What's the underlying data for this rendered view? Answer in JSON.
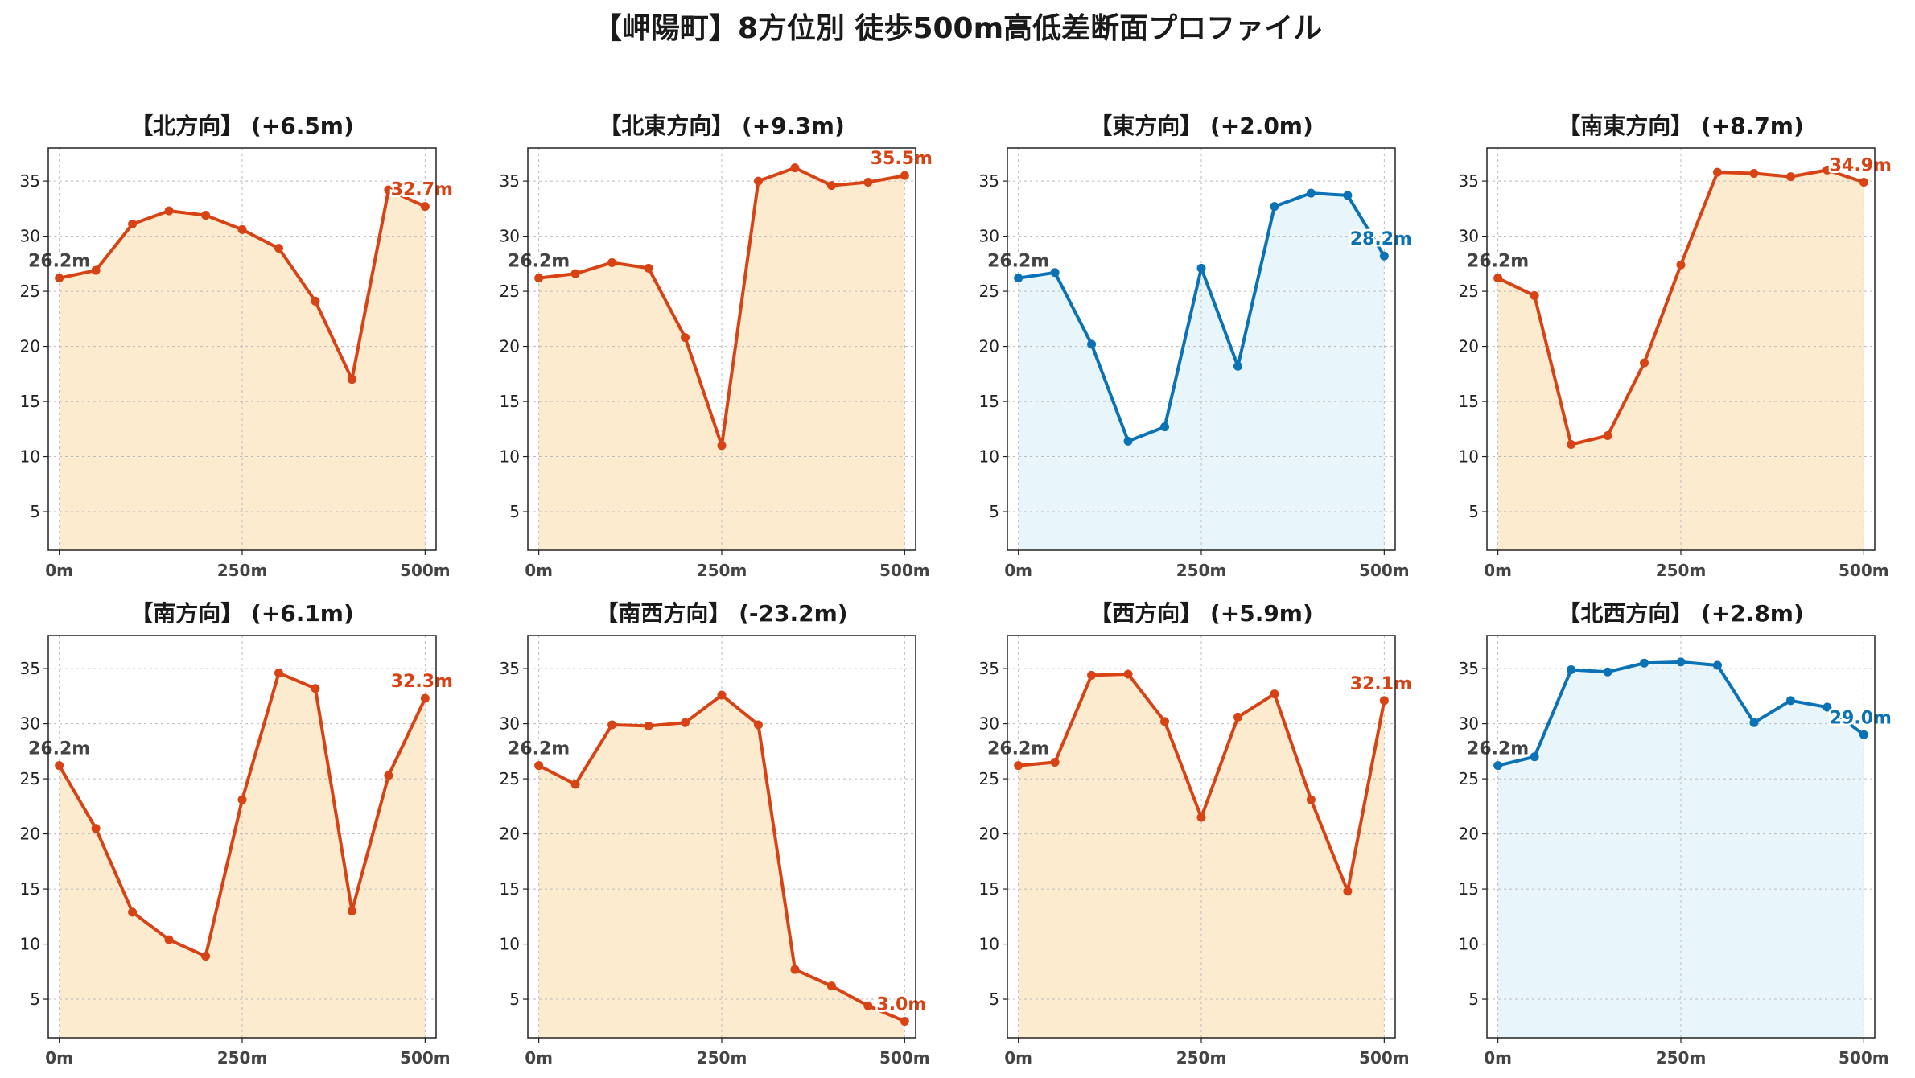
{
  "title": "【岬陽町】8方位別 徒歩500m高低差断面プロファイル",
  "colors": {
    "up_line": "#d84315",
    "up_fill": "#fdebd0",
    "mixed_line": "#0b72b5",
    "mixed_fill": "#e8f5fb",
    "start_label": "#444444",
    "grid": "#bbbbbb"
  },
  "chart_data": [
    {
      "type": "line",
      "title": "【北方向】 (+6.5m)",
      "style": "up",
      "x": [
        0,
        50,
        100,
        150,
        200,
        250,
        300,
        350,
        400,
        450,
        500
      ],
      "y": [
        26.2,
        26.9,
        31.1,
        32.3,
        31.9,
        30.6,
        28.9,
        24.1,
        17.0,
        34.2,
        32.7
      ],
      "start_label": "26.2m",
      "end_label": "32.7m",
      "xticks": [
        "0m",
        "250m",
        "500m"
      ],
      "yticks": [
        5,
        10,
        15,
        20,
        25,
        30,
        35
      ],
      "ylim": [
        1.5,
        38
      ],
      "grid": true
    },
    {
      "type": "line",
      "title": "【北東方向】 (+9.3m)",
      "style": "up",
      "x": [
        0,
        50,
        100,
        150,
        200,
        250,
        300,
        350,
        400,
        450,
        500
      ],
      "y": [
        26.2,
        26.6,
        27.6,
        27.1,
        20.8,
        11.0,
        35.0,
        36.2,
        34.6,
        34.9,
        35.5
      ],
      "start_label": "26.2m",
      "end_label": "35.5m",
      "xticks": [
        "0m",
        "250m",
        "500m"
      ],
      "yticks": [
        5,
        10,
        15,
        20,
        25,
        30,
        35
      ],
      "ylim": [
        1.5,
        38
      ],
      "grid": true
    },
    {
      "type": "line",
      "title": "【東方向】 (+2.0m)",
      "style": "mixed",
      "x": [
        0,
        50,
        100,
        150,
        200,
        250,
        300,
        350,
        400,
        450,
        500
      ],
      "y": [
        26.2,
        26.7,
        20.2,
        11.4,
        12.7,
        27.1,
        18.2,
        32.7,
        33.9,
        33.7,
        28.2
      ],
      "start_label": "26.2m",
      "end_label": "28.2m",
      "xticks": [
        "0m",
        "250m",
        "500m"
      ],
      "yticks": [
        5,
        10,
        15,
        20,
        25,
        30,
        35
      ],
      "ylim": [
        1.5,
        38
      ],
      "grid": true
    },
    {
      "type": "line",
      "title": "【南東方向】 (+8.7m)",
      "style": "up",
      "x": [
        0,
        50,
        100,
        150,
        200,
        250,
        300,
        350,
        400,
        450,
        500
      ],
      "y": [
        26.2,
        24.6,
        11.1,
        11.9,
        18.5,
        27.4,
        35.8,
        35.7,
        35.4,
        36.0,
        34.9
      ],
      "start_label": "26.2m",
      "end_label": "34.9m",
      "xticks": [
        "0m",
        "250m",
        "500m"
      ],
      "yticks": [
        5,
        10,
        15,
        20,
        25,
        30,
        35
      ],
      "ylim": [
        1.5,
        38
      ],
      "grid": true
    },
    {
      "type": "line",
      "title": "【南方向】 (+6.1m)",
      "style": "up",
      "x": [
        0,
        50,
        100,
        150,
        200,
        250,
        300,
        350,
        400,
        450,
        500
      ],
      "y": [
        26.2,
        20.5,
        12.9,
        10.4,
        8.9,
        23.1,
        34.6,
        33.2,
        13.0,
        25.3,
        32.3
      ],
      "start_label": "26.2m",
      "end_label": "32.3m",
      "xticks": [
        "0m",
        "250m",
        "500m"
      ],
      "yticks": [
        5,
        10,
        15,
        20,
        25,
        30,
        35
      ],
      "ylim": [
        1.5,
        38
      ],
      "grid": true
    },
    {
      "type": "line",
      "title": "【南西方向】 (-23.2m)",
      "style": "up",
      "x": [
        0,
        50,
        100,
        150,
        200,
        250,
        300,
        350,
        400,
        450,
        500
      ],
      "y": [
        26.2,
        24.5,
        29.9,
        29.8,
        30.1,
        32.6,
        29.9,
        7.7,
        6.2,
        4.4,
        3.0
      ],
      "start_label": "26.2m",
      "end_label": "3.0m",
      "xticks": [
        "0m",
        "250m",
        "500m"
      ],
      "yticks": [
        5,
        10,
        15,
        20,
        25,
        30,
        35
      ],
      "ylim": [
        1.5,
        38
      ],
      "grid": true
    },
    {
      "type": "line",
      "title": "【西方向】 (+5.9m)",
      "style": "up",
      "x": [
        0,
        50,
        100,
        150,
        200,
        250,
        300,
        350,
        400,
        450,
        500
      ],
      "y": [
        26.2,
        26.5,
        34.4,
        34.5,
        30.2,
        21.5,
        30.6,
        32.7,
        23.1,
        14.8,
        32.1
      ],
      "start_label": "26.2m",
      "end_label": "32.1m",
      "xticks": [
        "0m",
        "250m",
        "500m"
      ],
      "yticks": [
        5,
        10,
        15,
        20,
        25,
        30,
        35
      ],
      "ylim": [
        1.5,
        38
      ],
      "grid": true
    },
    {
      "type": "line",
      "title": "【北西方向】 (+2.8m)",
      "style": "mixed",
      "x": [
        0,
        50,
        100,
        150,
        200,
        250,
        300,
        350,
        400,
        450,
        500
      ],
      "y": [
        26.2,
        27.0,
        34.9,
        34.7,
        35.5,
        35.6,
        35.3,
        30.1,
        32.1,
        31.5,
        29.0
      ],
      "start_label": "26.2m",
      "end_label": "29.0m",
      "xticks": [
        "0m",
        "250m",
        "500m"
      ],
      "yticks": [
        5,
        10,
        15,
        20,
        25,
        30,
        35
      ],
      "ylim": [
        1.5,
        38
      ],
      "grid": true
    }
  ]
}
